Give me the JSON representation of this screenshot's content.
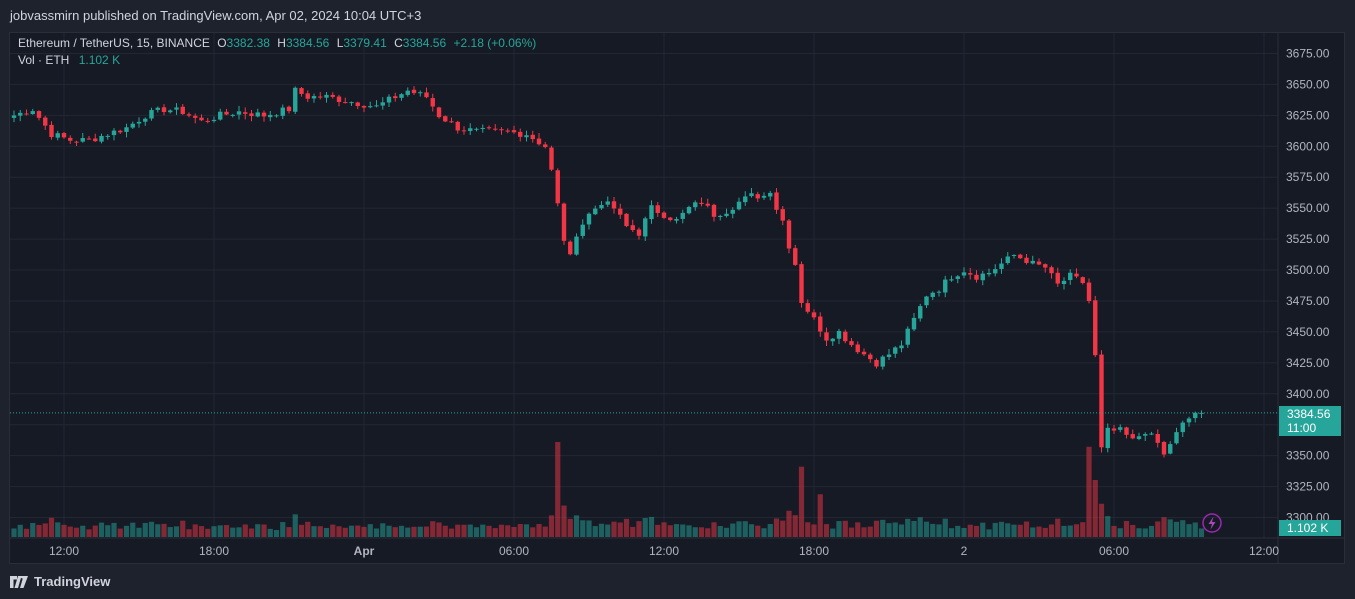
{
  "header": {
    "published_text": "jobvassmirn published on TradingView.com, Apr 02, 2024 10:04 UTC+3"
  },
  "legend": {
    "symbol": "Ethereum / TetherUS, 15, BINANCE",
    "o_label": "O",
    "o_value": "3382.38",
    "h_label": "H",
    "h_value": "3384.56",
    "l_label": "L",
    "l_value": "3379.41",
    "c_label": "C",
    "c_value": "3384.56",
    "change": "+2.18 (+0.06%)",
    "vol_label": "Vol · ETH",
    "vol_value": "1.102 K"
  },
  "price_scale": {
    "last_price": "3384.56",
    "countdown": "11:00",
    "last_volume": "1.102 K"
  },
  "footer": {
    "brand": "TradingView"
  },
  "colors": {
    "up": "#26a69a",
    "down": "#f23645",
    "background": "#161a25",
    "grid": "#232733",
    "text": "#d1d4dc"
  },
  "chart_data": {
    "type": "candlestick",
    "title": "Ethereum / TetherUS, 15, BINANCE",
    "y_ticks": [
      "3675.00",
      "3650.00",
      "3625.00",
      "3600.00",
      "3575.00",
      "3550.00",
      "3525.00",
      "3500.00",
      "3475.00",
      "3450.00",
      "3425.00",
      "3400.00",
      "3375.00",
      "3350.00",
      "3325.00",
      "3300.00"
    ],
    "ylim": [
      3295,
      3687
    ],
    "x_ticks": [
      {
        "label": "12:00",
        "bar": 4
      },
      {
        "label": "18:00",
        "bar": 28
      },
      {
        "label": "Apr",
        "bar": 52
      },
      {
        "label": "06:00",
        "bar": 76
      },
      {
        "label": "12:00",
        "bar": 100
      },
      {
        "label": "18:00",
        "bar": 124
      },
      {
        "label": "2",
        "bar": 148
      },
      {
        "label": "06:00",
        "bar": 172
      },
      {
        "label": "12:00",
        "bar": 196
      }
    ],
    "last_price": 3384.56,
    "bar_count": 200,
    "waypoints": [
      [
        0,
        3625
      ],
      [
        3,
        3630
      ],
      [
        6,
        3610
      ],
      [
        9,
        3605
      ],
      [
        12,
        3605
      ],
      [
        15,
        3610
      ],
      [
        18,
        3615
      ],
      [
        21,
        3625
      ],
      [
        24,
        3630
      ],
      [
        27,
        3628
      ],
      [
        30,
        3620
      ],
      [
        33,
        3625
      ],
      [
        36,
        3628
      ],
      [
        40,
        3625
      ],
      [
        44,
        3630
      ],
      [
        45,
        3645
      ],
      [
        47,
        3640
      ],
      [
        50,
        3640
      ],
      [
        55,
        3635
      ],
      [
        58,
        3632
      ],
      [
        61,
        3640
      ],
      [
        63,
        3645
      ],
      [
        66,
        3640
      ],
      [
        68,
        3625
      ],
      [
        71,
        3615
      ],
      [
        74,
        3612
      ],
      [
        78,
        3612
      ],
      [
        82,
        3610
      ],
      [
        85,
        3600
      ],
      [
        86,
        3580
      ],
      [
        88,
        3525
      ],
      [
        89,
        3510
      ],
      [
        90,
        3530
      ],
      [
        92,
        3545
      ],
      [
        94,
        3555
      ],
      [
        96,
        3550
      ],
      [
        98,
        3535
      ],
      [
        100,
        3530
      ],
      [
        102,
        3550
      ],
      [
        104,
        3545
      ],
      [
        106,
        3540
      ],
      [
        108,
        3550
      ],
      [
        110,
        3555
      ],
      [
        112,
        3545
      ],
      [
        114,
        3548
      ],
      [
        116,
        3555
      ],
      [
        118,
        3560
      ],
      [
        120,
        3560
      ],
      [
        121,
        3565
      ],
      [
        122,
        3550
      ],
      [
        123,
        3540
      ],
      [
        124,
        3520
      ],
      [
        125,
        3505
      ],
      [
        126,
        3475
      ],
      [
        128,
        3460
      ],
      [
        130,
        3445
      ],
      [
        132,
        3450
      ],
      [
        134,
        3440
      ],
      [
        136,
        3432
      ],
      [
        138,
        3425
      ],
      [
        140,
        3432
      ],
      [
        142,
        3440
      ],
      [
        144,
        3460
      ],
      [
        146,
        3480
      ],
      [
        148,
        3485
      ],
      [
        150,
        3495
      ],
      [
        152,
        3500
      ],
      [
        154,
        3495
      ],
      [
        156,
        3498
      ],
      [
        158,
        3505
      ],
      [
        160,
        3512
      ],
      [
        162,
        3508
      ],
      [
        163,
        3505
      ],
      [
        165,
        3502
      ],
      [
        167,
        3488
      ],
      [
        169,
        3495
      ],
      [
        171,
        3490
      ],
      [
        172,
        3475
      ],
      [
        173,
        3430
      ],
      [
        174,
        3355
      ],
      [
        175,
        3370
      ],
      [
        177,
        3370
      ],
      [
        179,
        3362
      ],
      [
        181,
        3370
      ],
      [
        183,
        3360
      ],
      [
        184,
        3350
      ],
      [
        185,
        3360
      ],
      [
        187,
        3375
      ],
      [
        189,
        3385
      ],
      [
        190,
        3384.56
      ]
    ],
    "volume_spikes": [
      [
        87,
        1.0
      ],
      [
        126,
        0.74
      ],
      [
        129,
        0.45
      ],
      [
        172,
        0.95
      ],
      [
        173,
        0.6
      ]
    ]
  }
}
